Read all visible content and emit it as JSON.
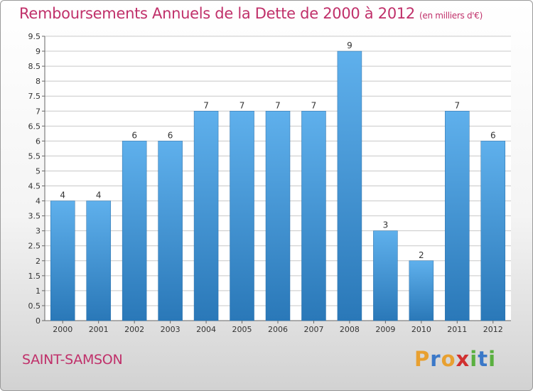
{
  "header": {
    "title": "Remboursements Annuels de la Dette de 2000 à 2012",
    "unit": "(en milliers d'€)"
  },
  "footer": {
    "commune": "SAINT-SAMSON",
    "logo_letters": [
      "P",
      "r",
      "o",
      "x",
      "i",
      "t",
      "i"
    ],
    "logo_colors": [
      "#e8a030",
      "#3a78c8",
      "#e8a030",
      "#d03030",
      "#5ab040",
      "#3a78c8",
      "#5ab040"
    ]
  },
  "colors": {
    "bar_top": "#5fb0ec",
    "bar_bottom": "#2a78b8",
    "grid": "#c8c8c8",
    "axis": "#666666"
  },
  "chart_data": {
    "type": "bar",
    "categories": [
      "2000",
      "2001",
      "2002",
      "2003",
      "2004",
      "2005",
      "2006",
      "2007",
      "2008",
      "2009",
      "2010",
      "2011",
      "2012"
    ],
    "values": [
      4,
      4,
      6,
      6,
      7,
      7,
      7,
      7,
      9,
      3,
      2,
      7,
      6
    ],
    "data_labels": [
      "4",
      "4",
      "6",
      "6",
      "7",
      "7",
      "7",
      "7",
      "9",
      "3",
      "2",
      "7",
      "6"
    ],
    "y_ticks": [
      "0",
      "0.5",
      "1",
      "1.5",
      "2",
      "2.5",
      "3",
      "3.5",
      "4",
      "4.5",
      "5",
      "5.5",
      "6",
      "6.5",
      "7",
      "7.5",
      "8",
      "8.5",
      "9",
      "9.5"
    ],
    "ylim": [
      0,
      9.5
    ],
    "grid": true
  }
}
